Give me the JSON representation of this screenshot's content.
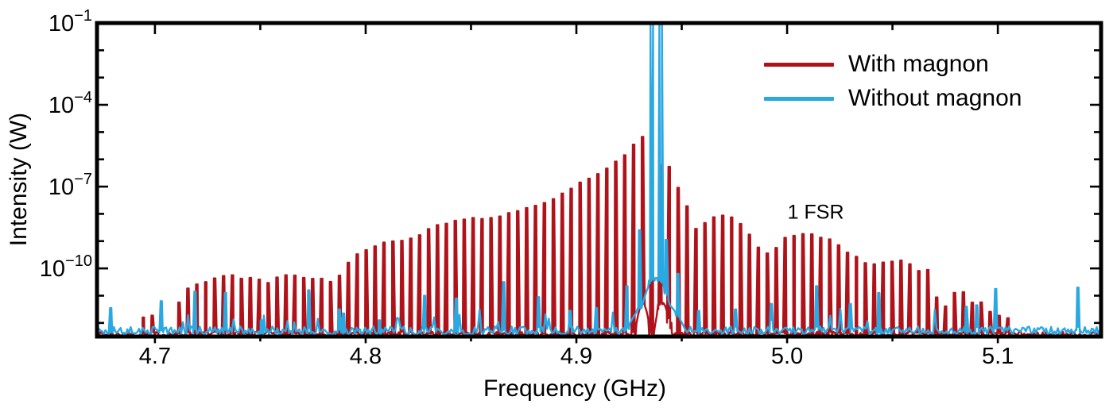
{
  "chart_data": {
    "type": "line",
    "title": "",
    "xlabel": "Frequency (GHz)",
    "ylabel": "Intensity (W)",
    "x_range": [
      4.6725,
      5.149
    ],
    "y_log_range": [
      -12.5,
      -1
    ],
    "grid": false,
    "legend_position": "top-right",
    "x_ticks": {
      "major": [
        4.7,
        4.8,
        4.9,
        5.0,
        5.1
      ],
      "labels": [
        "4.7",
        "4.8",
        "4.9",
        "5.0",
        "5.1"
      ],
      "minor": [
        4.75,
        4.85,
        4.95,
        5.05
      ]
    },
    "y_ticks": {
      "major": [
        -1,
        -4,
        -7,
        -10
      ],
      "labels": [
        {
          "base": "10",
          "exp": "−1"
        },
        {
          "base": "10",
          "exp": "−4"
        },
        {
          "base": "10",
          "exp": "−7"
        },
        {
          "base": "10",
          "exp": "−10"
        }
      ],
      "minor": [
        -2,
        -3,
        -5,
        -6,
        -8,
        -9,
        -11,
        -12
      ]
    },
    "noise_seed": 7,
    "sample_step": 0.0008,
    "series": [
      {
        "name": "With magnon",
        "color": "#b0121a",
        "kind": "comb",
        "comb": {
          "start": 4.6945,
          "end": 5.109,
          "spacing": 0.00423,
          "jitter": 0.12,
          "half_width_base": 0.00105,
          "half_width_top": 0.00038
        },
        "envelope": [
          [
            4.69,
            -12.45
          ],
          [
            4.6945,
            -11.75
          ],
          [
            4.699,
            -11.7
          ],
          [
            4.703,
            -12.35
          ],
          [
            4.707,
            -12.45
          ],
          [
            4.7105,
            -11.45
          ],
          [
            4.715,
            -10.7
          ],
          [
            4.72,
            -10.55
          ],
          [
            4.726,
            -10.4
          ],
          [
            4.732,
            -10.3
          ],
          [
            4.738,
            -10.3
          ],
          [
            4.744,
            -10.35
          ],
          [
            4.749,
            -10.45
          ],
          [
            4.753,
            -10.55
          ],
          [
            4.757,
            -10.4
          ],
          [
            4.761,
            -10.3
          ],
          [
            4.766,
            -10.25
          ],
          [
            4.772,
            -10.3
          ],
          [
            4.778,
            -10.4
          ],
          [
            4.783,
            -10.45
          ],
          [
            4.786,
            -10.4
          ],
          [
            4.79,
            -10.0
          ],
          [
            4.794,
            -9.6
          ],
          [
            4.798,
            -9.4
          ],
          [
            4.802,
            -9.25
          ],
          [
            4.81,
            -9.05
          ],
          [
            4.814,
            -9.02
          ],
          [
            4.818,
            -9.0
          ],
          [
            4.822,
            -8.85
          ],
          [
            4.826,
            -8.73
          ],
          [
            4.83,
            -8.6
          ],
          [
            4.834,
            -8.45
          ],
          [
            4.842,
            -8.25
          ],
          [
            4.85,
            -8.2
          ],
          [
            4.858,
            -8.1
          ],
          [
            4.866,
            -8.05
          ],
          [
            4.874,
            -7.9
          ],
          [
            4.882,
            -7.7
          ],
          [
            4.89,
            -7.4
          ],
          [
            4.898,
            -7.0
          ],
          [
            4.904,
            -6.75
          ],
          [
            4.91,
            -6.5
          ],
          [
            4.916,
            -6.25
          ],
          [
            4.92,
            -6.0
          ],
          [
            4.924,
            -5.75
          ],
          [
            4.928,
            -5.4
          ],
          [
            4.9315,
            -5.22
          ],
          [
            4.935,
            -5.9
          ],
          [
            4.9385,
            -6.3
          ],
          [
            4.9415,
            -6.0
          ],
          [
            4.943,
            -6.05
          ],
          [
            4.947,
            -7.05
          ],
          [
            4.951,
            -7.15
          ],
          [
            4.955,
            -8.7
          ],
          [
            4.959,
            -8.45
          ],
          [
            4.963,
            -8.2
          ],
          [
            4.967,
            -8.12
          ],
          [
            4.971,
            -8.1
          ],
          [
            4.975,
            -8.2
          ],
          [
            4.979,
            -8.4
          ],
          [
            4.983,
            -8.8
          ],
          [
            4.986,
            -9.2
          ],
          [
            4.99,
            -9.42
          ],
          [
            4.994,
            -9.25
          ],
          [
            4.998,
            -8.95
          ],
          [
            5.002,
            -8.78
          ],
          [
            5.006,
            -8.7
          ],
          [
            5.01,
            -8.7
          ],
          [
            5.014,
            -8.78
          ],
          [
            5.018,
            -8.9
          ],
          [
            5.022,
            -9.05
          ],
          [
            5.027,
            -9.3
          ],
          [
            5.032,
            -9.6
          ],
          [
            5.037,
            -9.78
          ],
          [
            5.042,
            -9.82
          ],
          [
            5.047,
            -9.78
          ],
          [
            5.052,
            -9.72
          ],
          [
            5.057,
            -9.82
          ],
          [
            5.062,
            -10.05
          ],
          [
            5.066,
            -9.95
          ],
          [
            5.069,
            -10.55
          ],
          [
            5.073,
            -11.7
          ],
          [
            5.077,
            -11.2
          ],
          [
            5.081,
            -10.6
          ],
          [
            5.086,
            -11.1
          ],
          [
            5.09,
            -11.35
          ],
          [
            5.093,
            -11.2
          ],
          [
            5.097,
            -11.6
          ],
          [
            5.103,
            -11.75
          ],
          [
            5.107,
            -12.0
          ],
          [
            5.111,
            -12.45
          ]
        ],
        "baseline": {
          "level": -12.42,
          "jitter": 0.2,
          "pop_chance": 0.0,
          "pop": 0.0
        },
        "bumps": [
          {
            "center": 4.9315,
            "peak": -11.3,
            "sigma": 0.0035
          },
          {
            "center": 4.9408,
            "peak": -11.25,
            "sigma": 0.0038
          }
        ]
      },
      {
        "name": "Without magnon",
        "color": "#29a8e2",
        "kind": "spikes",
        "spike_half_width_base": 0.0009,
        "spike_half_width_top": 0.00032,
        "giant_half_width_base": 0.00135,
        "giant_half_width_top": 0.00062,
        "giant_threshold": -2,
        "spikes": [
          [
            4.679,
            -11.45
          ],
          [
            4.703,
            -11.2
          ],
          [
            4.719,
            -10.85
          ],
          [
            4.7335,
            -10.9
          ],
          [
            4.7505,
            -11.9
          ],
          [
            4.773,
            -10.8
          ],
          [
            4.7875,
            -11.5
          ],
          [
            4.7895,
            -11.65
          ],
          [
            4.8065,
            -11.9
          ],
          [
            4.828,
            -11.0
          ],
          [
            4.843,
            -11.1
          ],
          [
            4.8655,
            -10.5
          ],
          [
            4.882,
            -11.05
          ],
          [
            4.897,
            -11.55
          ],
          [
            4.9095,
            -11.45
          ],
          [
            4.924,
            -10.65
          ],
          [
            4.93,
            -8.6
          ],
          [
            4.9358,
            -1.08
          ],
          [
            4.94,
            -1.07
          ],
          [
            4.9427,
            -8.95
          ],
          [
            4.9482,
            -10.2
          ],
          [
            4.958,
            -11.55
          ],
          [
            4.9755,
            -11.5
          ],
          [
            4.9925,
            -11.3
          ],
          [
            5.014,
            -10.65
          ],
          [
            5.03,
            -11.3
          ],
          [
            5.0435,
            -10.9
          ],
          [
            5.085,
            -11.4
          ],
          [
            5.09,
            -11.35
          ],
          [
            5.099,
            -10.75
          ],
          [
            5.138,
            -10.7
          ]
        ],
        "baseline": {
          "level": -12.28,
          "jitter": 0.3,
          "pop_chance": 0.06,
          "pop": 0.35
        },
        "bumps": [
          {
            "center": 4.9378,
            "peak": -10.35,
            "sigma": 0.0065
          },
          {
            "center": 4.9378,
            "peak": -11.1,
            "sigma": 0.013
          }
        ]
      }
    ],
    "annotations": [
      {
        "text": "1 FSR",
        "x": 5.0136,
        "y_log": -7.95
      }
    ]
  },
  "legend": {
    "items": [
      {
        "label": "With magnon",
        "color": "#b0121a"
      },
      {
        "label": "Without magnon",
        "color": "#29a8e2"
      }
    ]
  }
}
